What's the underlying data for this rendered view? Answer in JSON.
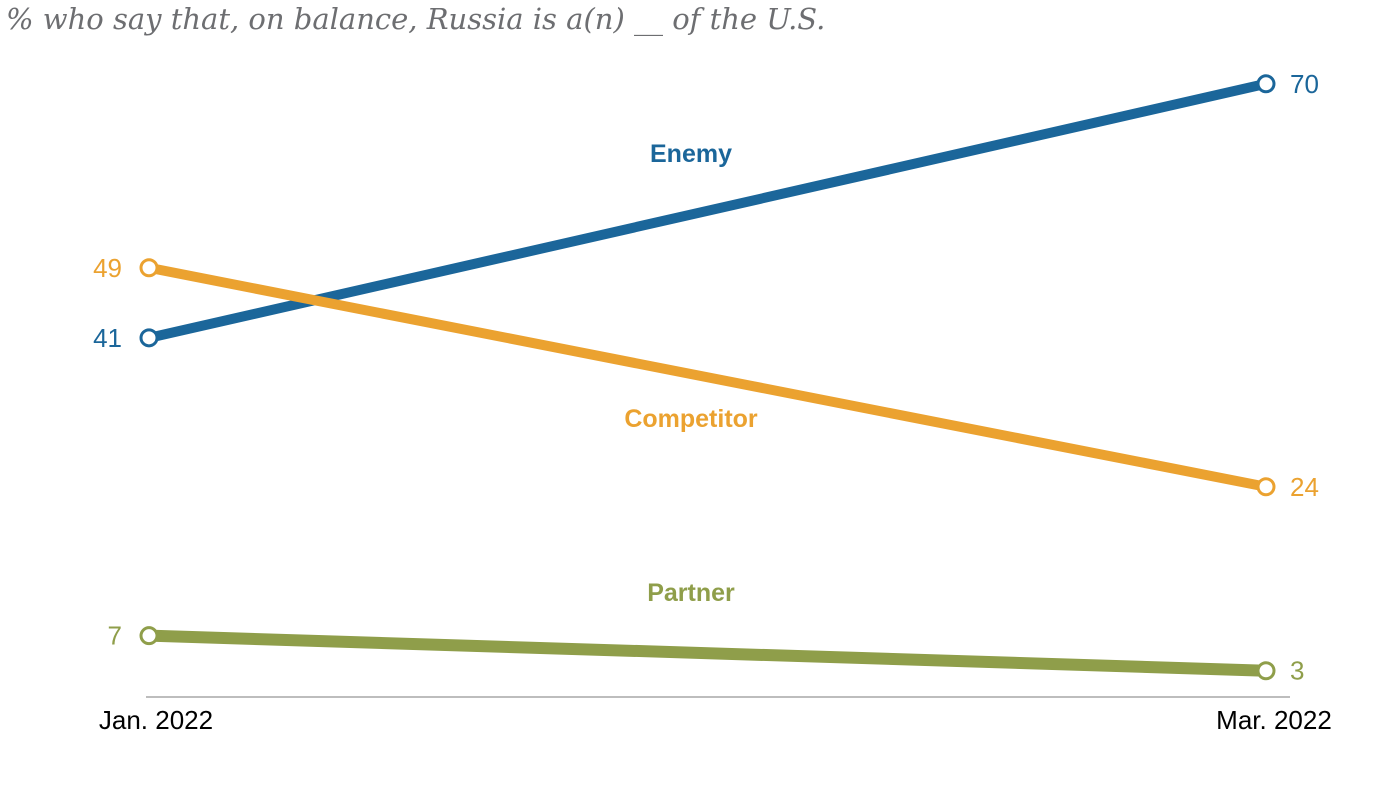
{
  "subtitle": "% who say that, on balance, Russia is a(n) __ of the U.S.",
  "chart_data": {
    "type": "line",
    "x": [
      "Jan. 2022",
      "Mar. 2022"
    ],
    "series": [
      {
        "name": "Enemy",
        "values": [
          41,
          70
        ],
        "color": "#1b669a"
      },
      {
        "name": "Competitor",
        "values": [
          49,
          24
        ],
        "color": "#eba230"
      },
      {
        "name": "Partner",
        "values": [
          7,
          3
        ],
        "color": "#8f9e4a"
      }
    ],
    "title": "",
    "xlabel": "",
    "ylabel": "",
    "ylim": [
      0,
      70
    ],
    "grid": false,
    "legend": "inline labels"
  }
}
